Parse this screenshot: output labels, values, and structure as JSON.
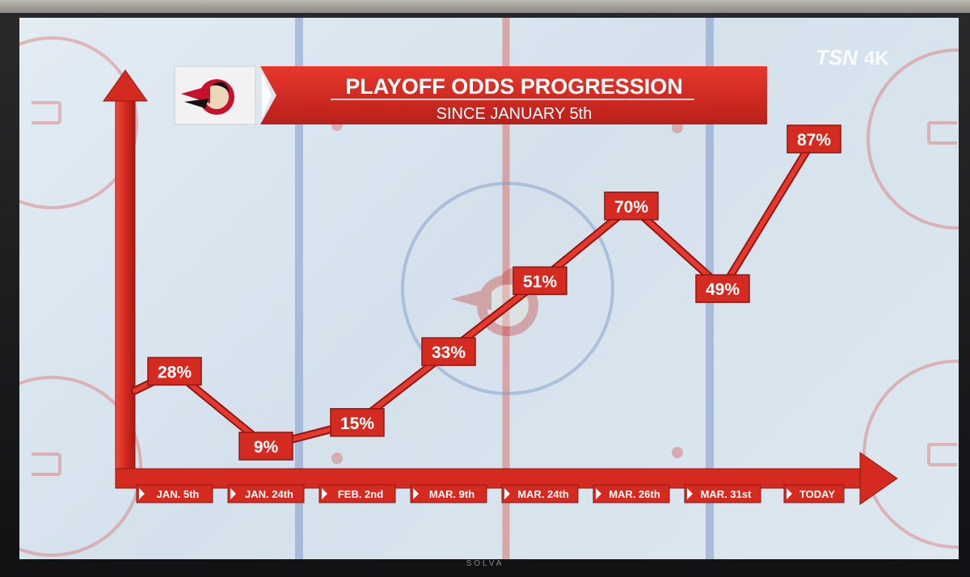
{
  "broadcast": {
    "network_logo": "TSN",
    "network_badge": "4K",
    "tv_brand": "SOLVA"
  },
  "header": {
    "title": "PLAYOFF ODDS PROGRESSION",
    "subtitle": "SINCE JANUARY 5th",
    "team_logo_icon": "ottawa-senators-logo"
  },
  "colors": {
    "accent": "#d42a20",
    "accent_dark": "#9e1b14",
    "ice": "#dfe8f0",
    "rink_red": "#d9605a",
    "rink_blue": "#6f8fc4"
  },
  "chart_data": {
    "type": "line",
    "title": "PLAYOFF ODDS PROGRESSION",
    "subtitle": "SINCE JANUARY 5th",
    "categories": [
      "JAN. 5th",
      "JAN. 24th",
      "FEB. 2nd",
      "MAR. 9th",
      "MAR. 24th",
      "MAR. 26th",
      "MAR. 31st",
      "TODAY"
    ],
    "series": [
      {
        "values": [
          28,
          9,
          15,
          33,
          51,
          70,
          49,
          87
        ]
      }
    ],
    "value_labels": [
      "28%",
      "9%",
      "15%",
      "33%",
      "51%",
      "70%",
      "49%",
      "87%"
    ],
    "xlabel": "",
    "ylabel": "",
    "ylim": [
      0,
      100
    ],
    "grid": false,
    "legend": "none"
  }
}
